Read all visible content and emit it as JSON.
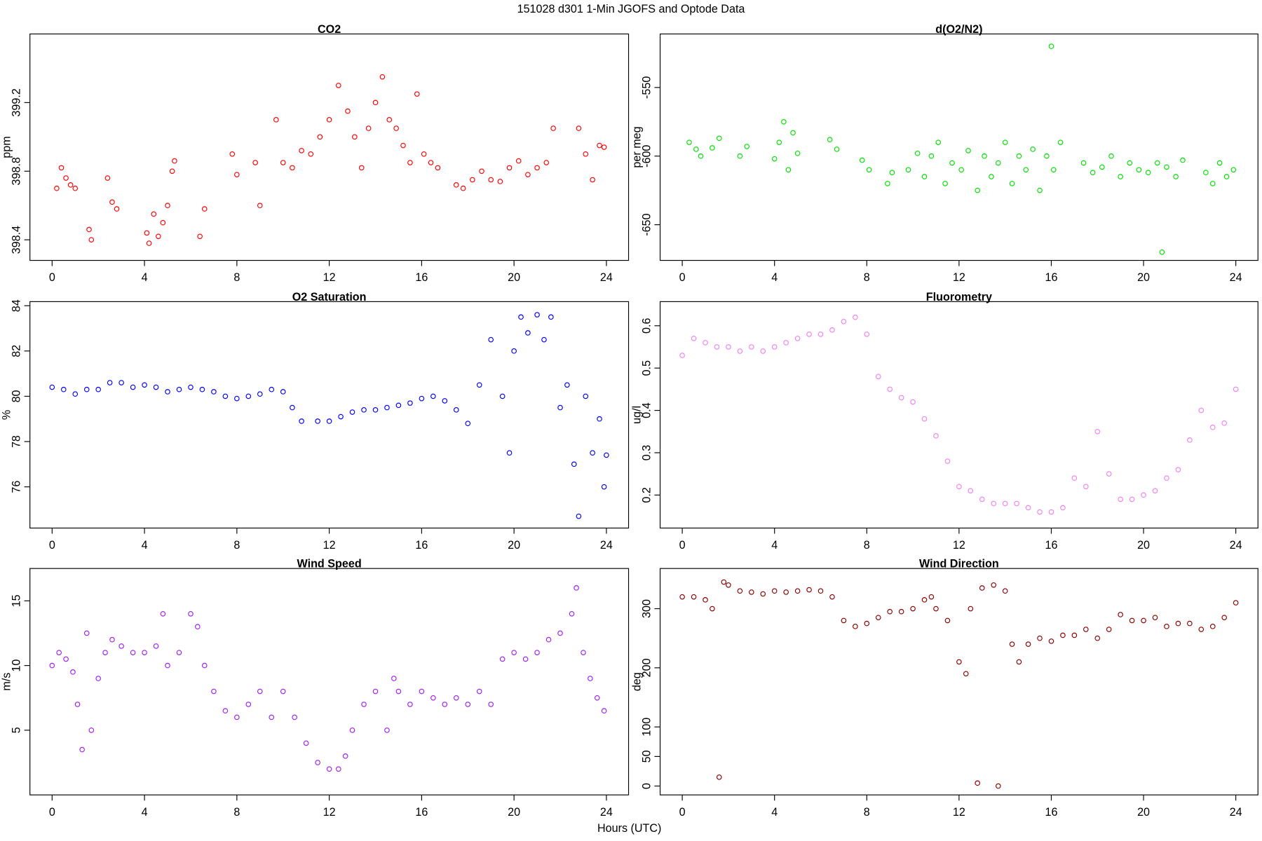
{
  "title": "151028   d301   1-Min  JGOFS and Optode Data",
  "xlabel": "Hours (UTC)",
  "chart_data": [
    {
      "type": "scatter",
      "title": "CO2",
      "ylabel": "ppm",
      "color": "#ff0000",
      "xlim": [
        -0.96,
        24.96
      ],
      "xticks": [
        0,
        4,
        8,
        12,
        16,
        20,
        24
      ],
      "ylim": [
        398.28,
        399.6
      ],
      "yticks": [
        398.4,
        398.8,
        399.2
      ],
      "x": [
        0.2,
        0.4,
        0.6,
        0.8,
        1.0,
        1.6,
        1.7,
        2.4,
        2.6,
        2.8,
        4.1,
        4.2,
        4.4,
        4.6,
        4.8,
        5.0,
        5.2,
        5.3,
        6.4,
        6.6,
        7.8,
        8.0,
        8.8,
        9.0,
        9.7,
        10.0,
        10.4,
        10.8,
        11.2,
        11.6,
        12.0,
        12.4,
        12.8,
        13.1,
        13.4,
        13.7,
        14.0,
        14.3,
        14.6,
        14.9,
        15.2,
        15.5,
        15.8,
        16.1,
        16.4,
        16.7,
        17.5,
        17.8,
        18.2,
        18.6,
        19.0,
        19.4,
        19.8,
        20.2,
        20.6,
        21.0,
        21.4,
        21.7,
        22.8,
        23.1,
        23.4,
        23.7,
        23.9
      ],
      "values": [
        398.7,
        398.82,
        398.76,
        398.72,
        398.7,
        398.46,
        398.4,
        398.76,
        398.62,
        398.58,
        398.44,
        398.38,
        398.55,
        398.42,
        398.5,
        398.6,
        398.8,
        398.86,
        398.42,
        398.58,
        398.9,
        398.78,
        398.85,
        398.6,
        399.1,
        398.85,
        398.82,
        398.92,
        398.9,
        399.0,
        399.1,
        399.3,
        399.15,
        399.0,
        398.82,
        399.05,
        399.2,
        399.35,
        399.1,
        399.05,
        398.95,
        398.85,
        399.25,
        398.9,
        398.85,
        398.82,
        398.72,
        398.7,
        398.75,
        398.8,
        398.75,
        398.74,
        398.82,
        398.86,
        398.78,
        398.82,
        398.85,
        399.05,
        399.05,
        398.9,
        398.75,
        398.95,
        398.94
      ]
    },
    {
      "type": "scatter",
      "title": "d(O2/N2)",
      "ylabel": "per meg",
      "color": "#00e000",
      "xlim": [
        -0.96,
        24.96
      ],
      "xticks": [
        0,
        4,
        8,
        12,
        16,
        20,
        24
      ],
      "ylim": [
        -676,
        -511
      ],
      "yticks": [
        -650,
        -600,
        -550
      ],
      "x": [
        0.3,
        0.6,
        0.8,
        1.3,
        1.6,
        2.5,
        2.8,
        4.0,
        4.2,
        4.4,
        4.6,
        4.8,
        5.0,
        6.4,
        6.7,
        7.8,
        8.1,
        8.9,
        9.1,
        9.8,
        10.2,
        10.5,
        10.8,
        11.1,
        11.4,
        11.7,
        12.1,
        12.4,
        12.8,
        13.1,
        13.4,
        13.7,
        14.0,
        14.3,
        14.6,
        14.9,
        15.2,
        15.5,
        15.8,
        16.0,
        16.1,
        16.4,
        17.4,
        17.8,
        18.2,
        18.6,
        19.0,
        19.4,
        19.8,
        20.2,
        20.6,
        20.8,
        21.0,
        21.4,
        21.7,
        22.7,
        23.0,
        23.3,
        23.6,
        23.9
      ],
      "values": [
        -590,
        -595,
        -600,
        -594,
        -587,
        -600,
        -593,
        -602,
        -590,
        -575,
        -610,
        -583,
        -598,
        -588,
        -595,
        -603,
        -610,
        -620,
        -612,
        -610,
        -598,
        -615,
        -600,
        -590,
        -620,
        -605,
        -610,
        -596,
        -625,
        -600,
        -615,
        -605,
        -590,
        -620,
        -600,
        -610,
        -595,
        -625,
        -600,
        -520,
        -610,
        -590,
        -605,
        -612,
        -608,
        -600,
        -615,
        -605,
        -610,
        -612,
        -605,
        -670,
        -608,
        -615,
        -603,
        -612,
        -620,
        -605,
        -615,
        -610
      ]
    },
    {
      "type": "scatter",
      "title": "O2 Saturation",
      "ylabel": "%",
      "color": "#0000ff",
      "xlim": [
        -0.96,
        24.96
      ],
      "xticks": [
        0,
        4,
        8,
        12,
        16,
        20,
        24
      ],
      "ylim": [
        74.18,
        84.18
      ],
      "yticks": [
        76,
        78,
        80,
        82,
        84
      ],
      "x": [
        0,
        0.5,
        1,
        1.5,
        2,
        2.5,
        3,
        3.5,
        4,
        4.5,
        5,
        5.5,
        6,
        6.5,
        7,
        7.5,
        8,
        8.5,
        9,
        9.5,
        10,
        10.4,
        10.8,
        11.5,
        12,
        12.5,
        13,
        13.5,
        14,
        14.5,
        15,
        15.5,
        16,
        16.5,
        17,
        17.5,
        18,
        18.5,
        19,
        19.5,
        19.8,
        20,
        20.3,
        20.6,
        21,
        21.3,
        21.6,
        22,
        22.3,
        22.6,
        22.8,
        23.1,
        23.4,
        23.7,
        23.9,
        24
      ],
      "values": [
        80.4,
        80.3,
        80.1,
        80.3,
        80.3,
        80.6,
        80.6,
        80.4,
        80.5,
        80.4,
        80.2,
        80.3,
        80.4,
        80.3,
        80.2,
        80.0,
        79.9,
        80.0,
        80.1,
        80.3,
        80.2,
        79.5,
        78.9,
        78.9,
        78.9,
        79.1,
        79.3,
        79.4,
        79.4,
        79.5,
        79.6,
        79.7,
        79.9,
        80.0,
        79.8,
        79.4,
        78.8,
        80.5,
        82.5,
        80.0,
        77.5,
        82.0,
        83.5,
        82.8,
        83.6,
        82.5,
        83.5,
        79.5,
        80.5,
        77.0,
        74.7,
        80.0,
        77.5,
        79.0,
        76.0,
        77.4
      ]
    },
    {
      "type": "scatter",
      "title": "Fluorometry",
      "ylabel": "ug/l",
      "color": "#ee82ee",
      "xlim": [
        -0.96,
        24.96
      ],
      "xticks": [
        0,
        4,
        8,
        12,
        16,
        20,
        24
      ],
      "ylim": [
        0.122,
        0.657
      ],
      "yticks": [
        0.2,
        0.3,
        0.4,
        0.5,
        0.6
      ],
      "x": [
        0,
        0.5,
        1,
        1.5,
        2,
        2.5,
        3,
        3.5,
        4,
        4.5,
        5,
        5.5,
        6,
        6.5,
        7,
        7.5,
        8,
        8.5,
        9,
        9.5,
        10,
        10.5,
        11,
        11.5,
        12,
        12.5,
        13,
        13.5,
        14,
        14.5,
        15,
        15.5,
        16,
        16.5,
        17,
        17.5,
        18,
        18.5,
        19,
        19.5,
        20,
        20.5,
        21,
        21.5,
        22,
        22.5,
        23,
        23.5,
        24
      ],
      "values": [
        0.53,
        0.57,
        0.56,
        0.55,
        0.55,
        0.54,
        0.55,
        0.54,
        0.55,
        0.56,
        0.57,
        0.58,
        0.58,
        0.59,
        0.61,
        0.62,
        0.58,
        0.48,
        0.45,
        0.43,
        0.42,
        0.38,
        0.34,
        0.28,
        0.22,
        0.21,
        0.19,
        0.18,
        0.18,
        0.18,
        0.17,
        0.16,
        0.16,
        0.17,
        0.24,
        0.22,
        0.35,
        0.25,
        0.19,
        0.19,
        0.2,
        0.21,
        0.24,
        0.26,
        0.33,
        0.4,
        0.36,
        0.37,
        0.45
      ]
    },
    {
      "type": "scatter",
      "title": "Wind Speed",
      "ylabel": "m/s",
      "color": "#a020f0",
      "xlim": [
        -0.96,
        24.96
      ],
      "xticks": [
        0,
        4,
        8,
        12,
        16,
        20,
        24
      ],
      "ylim": [
        0,
        17.5
      ],
      "yticks": [
        5,
        10,
        15
      ],
      "x": [
        0,
        0.3,
        0.6,
        0.9,
        1.1,
        1.3,
        1.5,
        1.7,
        2.0,
        2.3,
        2.6,
        3,
        3.5,
        4,
        4.5,
        4.8,
        5,
        5.5,
        6,
        6.3,
        6.6,
        7,
        7.5,
        8,
        8.5,
        9,
        9.5,
        10,
        10.5,
        11,
        11.5,
        12,
        12.4,
        12.7,
        13,
        13.5,
        14,
        14.5,
        14.8,
        15,
        15.5,
        16,
        16.5,
        17,
        17.5,
        18,
        18.5,
        19,
        19.5,
        20,
        20.5,
        21,
        21.5,
        22,
        22.5,
        22.7,
        23,
        23.3,
        23.6,
        23.9
      ],
      "values": [
        10,
        11,
        10.5,
        9.5,
        7,
        3.5,
        12.5,
        5,
        9,
        11,
        12,
        11.5,
        11,
        11,
        11.5,
        14,
        10,
        11,
        14,
        13,
        10,
        8,
        6.5,
        6,
        7,
        8,
        6,
        8,
        6,
        4,
        2.5,
        2,
        2,
        3,
        5,
        7,
        8,
        5,
        9,
        8,
        7,
        8,
        7.5,
        7,
        7.5,
        7,
        8,
        7,
        10.5,
        11,
        10.5,
        11,
        12,
        12.5,
        14,
        16,
        11,
        9,
        7.5,
        6.5
      ]
    },
    {
      "type": "scatter",
      "title": "Wind Direction",
      "ylabel": "deg",
      "color": "#8b0000",
      "xlim": [
        -0.96,
        24.96
      ],
      "xticks": [
        0,
        4,
        8,
        12,
        16,
        20,
        24
      ],
      "ylim": [
        -15,
        368
      ],
      "yticks": [
        0,
        50,
        100,
        200,
        300
      ],
      "x": [
        0,
        0.5,
        1,
        1.3,
        1.6,
        1.8,
        2,
        2.5,
        3,
        3.5,
        4,
        4.5,
        5,
        5.5,
        6,
        6.5,
        7,
        7.5,
        8,
        8.5,
        9,
        9.5,
        10,
        10.5,
        10.8,
        11,
        11.5,
        12,
        12.3,
        12.5,
        12.8,
        13,
        13.5,
        13.7,
        14,
        14.3,
        14.6,
        15,
        15.5,
        16,
        16.5,
        17,
        17.5,
        18,
        18.5,
        19,
        19.5,
        20,
        20.5,
        21,
        21.5,
        22,
        22.5,
        23,
        23.5,
        24
      ],
      "values": [
        320,
        320,
        315,
        300,
        15,
        345,
        340,
        330,
        328,
        325,
        330,
        328,
        330,
        332,
        330,
        320,
        280,
        270,
        275,
        285,
        295,
        295,
        300,
        315,
        320,
        300,
        280,
        210,
        190,
        300,
        5,
        335,
        340,
        0,
        330,
        240,
        210,
        240,
        250,
        245,
        255,
        255,
        265,
        250,
        265,
        290,
        280,
        280,
        285,
        270,
        275,
        275,
        265,
        270,
        285,
        310
      ]
    }
  ]
}
